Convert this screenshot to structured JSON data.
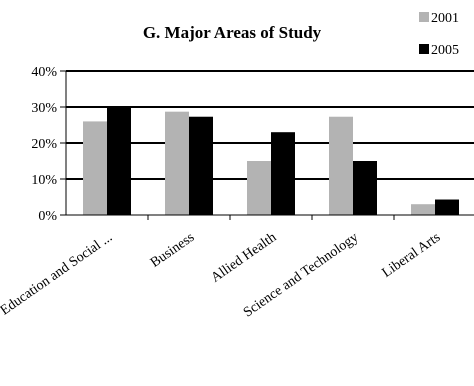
{
  "chart_data": {
    "type": "bar",
    "title": "G.  Major Areas of Study",
    "categories": [
      "Education and Social ...",
      "Business",
      "Allied Health",
      "Science and Technology",
      "Liberal Arts"
    ],
    "series": [
      {
        "name": "2001",
        "values": [
          26,
          28.7,
          15,
          27.3,
          3
        ],
        "color": "#b3b3b3"
      },
      {
        "name": "2005",
        "values": [
          30,
          27.3,
          23,
          15,
          4.3
        ],
        "color": "#000000"
      }
    ],
    "ylim": [
      0,
      40
    ],
    "yticks": [
      "0%",
      "10%",
      "20%",
      "30%",
      "40%"
    ],
    "grid": true,
    "legend_position": "top-right"
  }
}
